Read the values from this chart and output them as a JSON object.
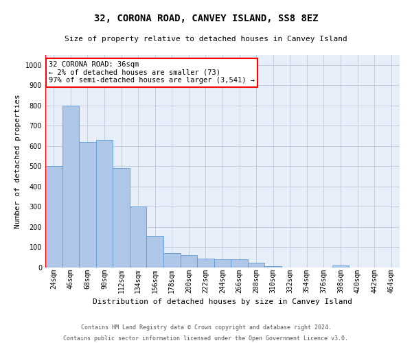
{
  "title": "32, CORONA ROAD, CANVEY ISLAND, SS8 8EZ",
  "subtitle": "Size of property relative to detached houses in Canvey Island",
  "xlabel": "Distribution of detached houses by size in Canvey Island",
  "ylabel": "Number of detached properties",
  "footer_line1": "Contains HM Land Registry data © Crown copyright and database right 2024.",
  "footer_line2": "Contains public sector information licensed under the Open Government Licence v3.0.",
  "annotation_title": "32 CORONA ROAD: 36sqm",
  "annotation_line2": "← 2% of detached houses are smaller (73)",
  "annotation_line3": "97% of semi-detached houses are larger (3,541) →",
  "bar_labels": [
    "24sqm",
    "46sqm",
    "68sqm",
    "90sqm",
    "112sqm",
    "134sqm",
    "156sqm",
    "178sqm",
    "200sqm",
    "222sqm",
    "244sqm",
    "266sqm",
    "288sqm",
    "310sqm",
    "332sqm",
    "354sqm",
    "376sqm",
    "398sqm",
    "420sqm",
    "442sqm",
    "464sqm"
  ],
  "bar_values": [
    500,
    800,
    620,
    630,
    490,
    300,
    155,
    70,
    60,
    45,
    40,
    40,
    25,
    8,
    0,
    0,
    0,
    10,
    0,
    0,
    0
  ],
  "bar_color": "#aec6e8",
  "bar_edgecolor": "#5b9bd5",
  "ylim": [
    0,
    1050
  ],
  "yticks": [
    0,
    100,
    200,
    300,
    400,
    500,
    600,
    700,
    800,
    900,
    1000
  ],
  "bg_color": "#e8eef8",
  "grid_color": "#b8c8dc",
  "title_fontsize": 10,
  "subtitle_fontsize": 8,
  "ylabel_fontsize": 8,
  "xlabel_fontsize": 8,
  "tick_fontsize": 7,
  "footer_fontsize": 6,
  "ann_fontsize": 7.5
}
